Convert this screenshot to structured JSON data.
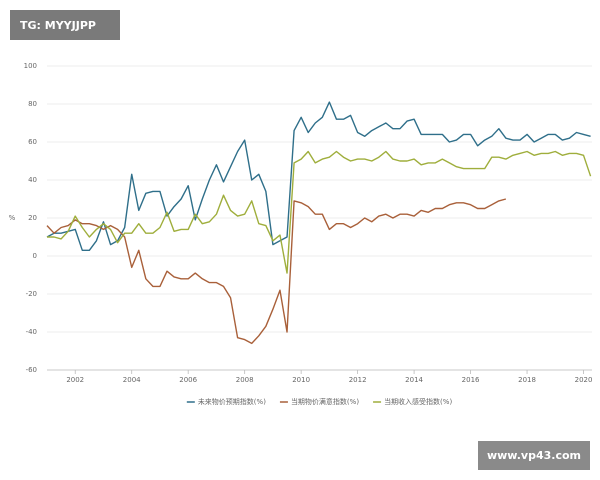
{
  "chart_data": {
    "type": "line",
    "ylabel": "%",
    "x": [
      2001,
      2001.25,
      2001.5,
      2001.75,
      2002,
      2002.25,
      2002.5,
      2002.75,
      2003,
      2003.25,
      2003.5,
      2003.75,
      2004,
      2004.25,
      2004.5,
      2004.75,
      2005,
      2005.25,
      2005.5,
      2005.75,
      2006,
      2006.25,
      2006.5,
      2006.75,
      2007,
      2007.25,
      2007.5,
      2007.75,
      2008,
      2008.25,
      2008.5,
      2008.75,
      2009,
      2009.25,
      2009.5,
      2009.75,
      2010,
      2010.25,
      2010.5,
      2010.75,
      2011,
      2011.25,
      2011.5,
      2011.75,
      2012,
      2012.25,
      2012.5,
      2012.75,
      2013,
      2013.25,
      2013.5,
      2013.75,
      2014,
      2014.25,
      2014.5,
      2014.75,
      2015,
      2015.25,
      2015.5,
      2015.75,
      2016,
      2016.25,
      2016.5,
      2016.75,
      2017,
      2017.25,
      2017.5,
      2017.75,
      2018,
      2018.25,
      2018.5,
      2018.75,
      2019,
      2019.25,
      2019.5,
      2019.75,
      2020,
      2020.25
    ],
    "series": [
      {
        "name": "未来物价预期指数(%)",
        "color": "#2f6f8a",
        "values": [
          10,
          12,
          12,
          13,
          14,
          3,
          3,
          8,
          18,
          6,
          8,
          15,
          43,
          24,
          33,
          34,
          34,
          21,
          26,
          30,
          37,
          19,
          30,
          40,
          48,
          39,
          47,
          55,
          61,
          40,
          43,
          34,
          6,
          8,
          10,
          66,
          73,
          65,
          70,
          73,
          81,
          72,
          72,
          74,
          65,
          63,
          66,
          68,
          70,
          67,
          67,
          71,
          72,
          64,
          64,
          64,
          64,
          60,
          61,
          64,
          64,
          58,
          61,
          63,
          67,
          62,
          61,
          61,
          64,
          60,
          62,
          64,
          64,
          61,
          62,
          65,
          64,
          63
        ]
      },
      {
        "name": "当期物价满意指数(%)",
        "color": "#a9603a",
        "values": [
          16,
          12,
          15,
          16,
          19,
          17,
          17,
          16,
          14,
          16,
          14,
          10,
          -6,
          3,
          -12,
          -16,
          -16,
          -8,
          -11,
          -12,
          -12,
          -9,
          -12,
          -14,
          -14,
          -16,
          -22,
          -43,
          -44,
          -46,
          -42,
          -37,
          -28,
          -18,
          -40,
          29,
          28,
          26,
          22,
          22,
          14,
          17,
          17,
          15,
          17,
          20,
          18,
          21,
          22,
          20,
          22,
          22,
          21,
          24,
          23,
          25,
          25,
          27,
          28,
          28,
          27,
          25,
          25,
          27,
          29,
          30,
          null,
          null,
          null,
          null,
          null,
          null,
          null,
          null,
          null,
          null,
          null,
          null
        ]
      },
      {
        "name": "当期收入感受指数(%)",
        "color": "#9fae3c",
        "values": [
          10,
          10,
          9,
          13,
          21,
          15,
          10,
          14,
          17,
          14,
          7,
          12,
          12,
          17,
          12,
          12,
          15,
          23,
          13,
          14,
          14,
          22,
          17,
          18,
          22,
          32,
          24,
          21,
          22,
          29,
          17,
          16,
          8,
          11,
          -9,
          49,
          51,
          55,
          49,
          51,
          52,
          55,
          52,
          50,
          51,
          51,
          50,
          52,
          55,
          51,
          50,
          50,
          51,
          48,
          49,
          49,
          51,
          49,
          47,
          46,
          46,
          46,
          46,
          52,
          52,
          51,
          53,
          54,
          55,
          53,
          54,
          54,
          55,
          53,
          54,
          54,
          53,
          42
        ]
      }
    ],
    "xlim": [
      2001,
      2020.3
    ],
    "xticks": [
      2002,
      2004,
      2006,
      2008,
      2010,
      2012,
      2014,
      2016,
      2018,
      2020
    ],
    "ylim": [
      -60,
      100
    ],
    "yticks": [
      -60,
      -40,
      -20,
      0,
      20,
      40,
      60,
      80,
      100
    ],
    "grid": true,
    "legend": "bottom"
  },
  "watermarks": {
    "top_left": "TG: MYYJJPP",
    "bottom_right": "www.vp43.com"
  }
}
